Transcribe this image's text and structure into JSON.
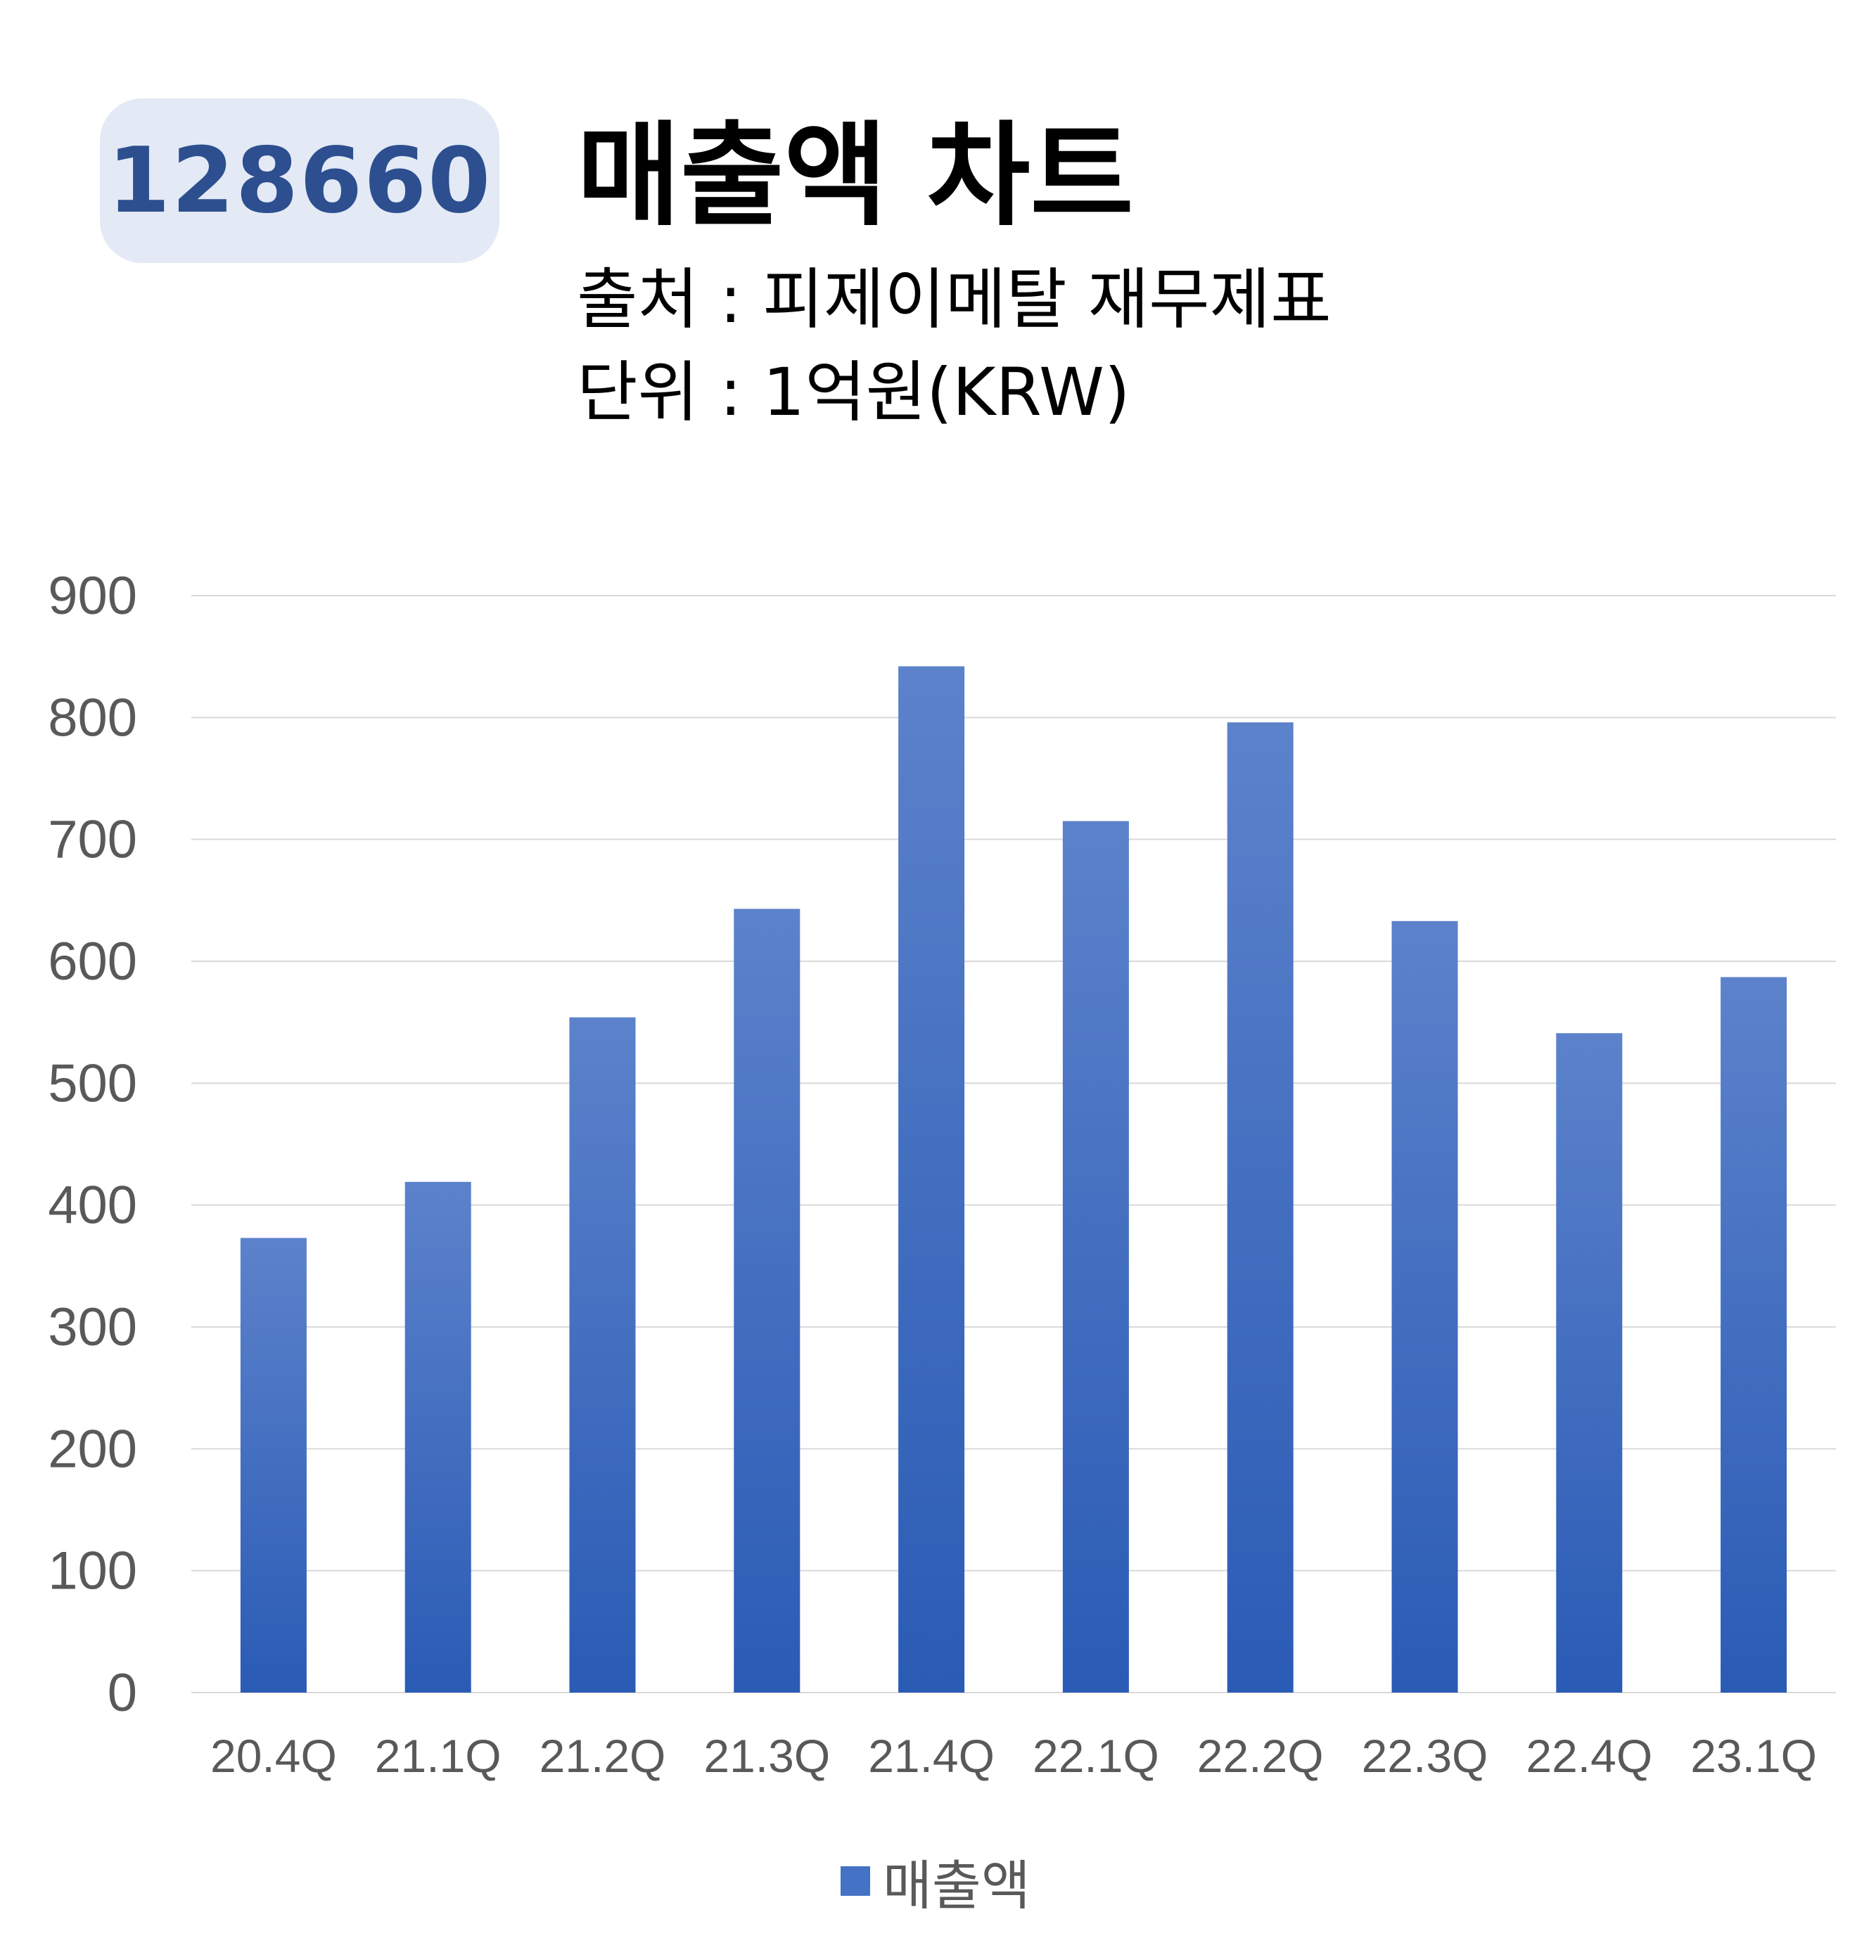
{
  "header": {
    "ticker": "128660",
    "title": "매출액 차트",
    "source": "출처 : 피제이메탈 재무제표",
    "unit": "단위 : 1억원(KRW)"
  },
  "colors": {
    "bar_top": "#5c82cb",
    "bar_bottom": "#2a5bb5",
    "grid": "#d9d9d9",
    "tick_text": "#595959",
    "badge_bg": "#e3e9f5",
    "badge_text": "#2d4f8f"
  },
  "chart_data": {
    "type": "bar",
    "categories": [
      "20.4Q",
      "21.1Q",
      "21.2Q",
      "21.3Q",
      "21.4Q",
      "22.1Q",
      "22.2Q",
      "22.3Q",
      "22.4Q",
      "23.1Q"
    ],
    "series": [
      {
        "name": "매출액",
        "values": [
          373,
          419,
          554,
          643,
          842,
          715,
          796,
          633,
          541,
          587
        ]
      }
    ],
    "yticks": [
      "0",
      "100",
      "200",
      "300",
      "400",
      "500",
      "600",
      "700",
      "800",
      "900"
    ],
    "ylim": [
      0,
      900
    ],
    "grid": true,
    "legend_position": "bottom"
  }
}
